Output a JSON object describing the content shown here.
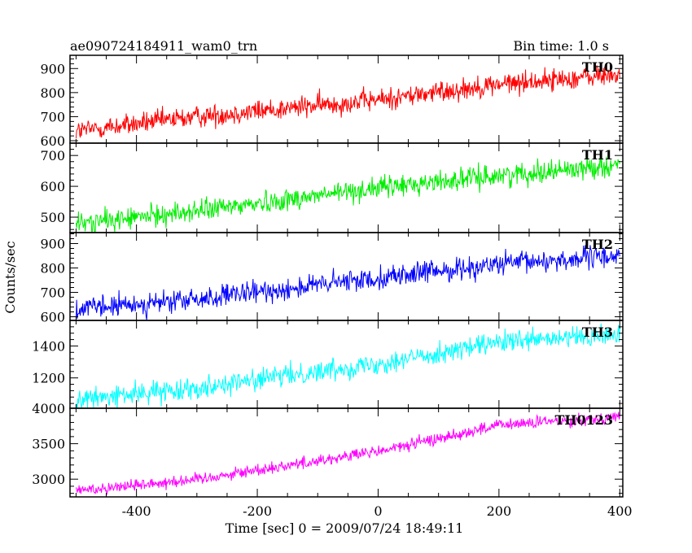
{
  "header": {
    "title": "ae090724184911_wam0_trn",
    "bin_time": "Bin time: 1.0 s"
  },
  "axes": {
    "ylabel": "Counts/sec",
    "xlabel": "Time [sec] 0 = 2009/07/24 18:49:11"
  },
  "chart_data": {
    "type": "line",
    "title": "ae090724184911_wam0_trn",
    "xlabel": "Time [sec] 0 = 2009/07/24 18:49:11",
    "ylabel": "Counts/sec",
    "xlim": [
      -510,
      405
    ],
    "x_start": -500,
    "x_end": 400,
    "bin_time": 1.0,
    "x_ticks": [
      -400,
      -200,
      0,
      200,
      400
    ],
    "panels": [
      {
        "name": "TH0",
        "color": "#ff0000",
        "ylim": [
          590,
          955
        ],
        "yticks": [
          600,
          700,
          800,
          900
        ],
        "trend": [
          [
            -500,
            640
          ],
          [
            -300,
            700
          ],
          [
            0,
            770
          ],
          [
            200,
            835
          ],
          [
            400,
            875
          ]
        ],
        "noise": 45
      },
      {
        "name": "TH1",
        "color": "#00ee00",
        "ylim": [
          450,
          740
        ],
        "yticks": [
          500,
          600,
          700
        ],
        "trend": [
          [
            -500,
            478
          ],
          [
            -300,
            520
          ],
          [
            0,
            595
          ],
          [
            200,
            635
          ],
          [
            400,
            670
          ]
        ],
        "noise": 35
      },
      {
        "name": "TH2",
        "color": "#0000ff",
        "ylim": [
          585,
          945
        ],
        "yticks": [
          600,
          700,
          800,
          900
        ],
        "trend": [
          [
            -500,
            630
          ],
          [
            -300,
            670
          ],
          [
            0,
            760
          ],
          [
            200,
            815
          ],
          [
            400,
            850
          ]
        ],
        "noise": 45
      },
      {
        "name": "TH3",
        "color": "#00ffff",
        "ylim": [
          1010,
          1560
        ],
        "yticks": [
          1200,
          1400
        ],
        "trend": [
          [
            -500,
            1060
          ],
          [
            -300,
            1140
          ],
          [
            0,
            1290
          ],
          [
            200,
            1420
          ],
          [
            400,
            1470
          ]
        ],
        "noise": 65
      },
      {
        "name": "TH0123",
        "color": "#ff00ff",
        "ylim": [
          2750,
          4000
        ],
        "yticks": [
          3000,
          3500,
          4000
        ],
        "trend": [
          [
            -500,
            2840
          ],
          [
            -300,
            3000
          ],
          [
            0,
            3390
          ],
          [
            200,
            3760
          ],
          [
            400,
            3880
          ]
        ],
        "noise": 85
      }
    ]
  }
}
